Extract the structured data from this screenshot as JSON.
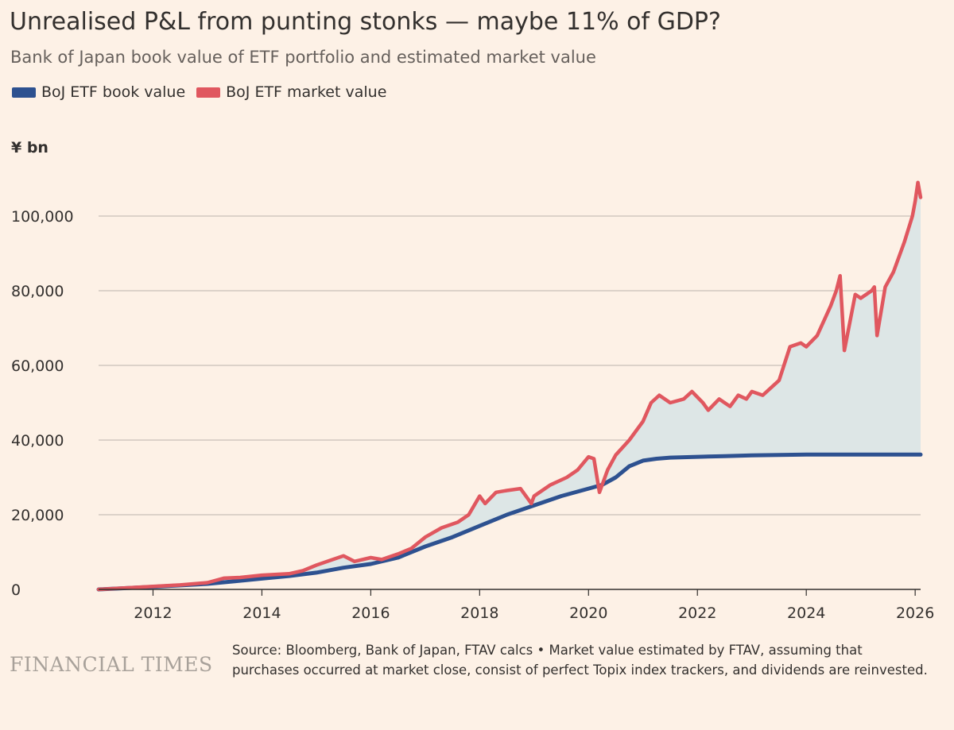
{
  "title": "Unrealised P&L from punting stonks — maybe 11% of GDP?",
  "subtitle": "Bank of Japan book value of ETF portfolio and estimated market value",
  "source": {
    "line": "Source: Bloomberg, Bank of Japan, FTAV calcs • Market value estimated by FTAV, assuming that purchases occurred at market close, consist of perfect Topix index trackers, and dividends are reinvested."
  },
  "brand": "FINANCIAL TIMES",
  "colors": {
    "background": "#fdf1e6",
    "book": "#2d5190",
    "market": "#e0575f",
    "fill": "#dde6e6",
    "grid": "#c9c0b8",
    "axis": "#33302e"
  },
  "chart_data": {
    "type": "line",
    "title": "Unrealised P&L from punting stonks — maybe 11% of GDP?",
    "ylabel": "¥ bn",
    "xlabel": "",
    "xlim": [
      2011.0,
      2026.1
    ],
    "ylim": [
      0,
      110000
    ],
    "xticks": [
      2012,
      2014,
      2016,
      2018,
      2020,
      2022,
      2024,
      2026
    ],
    "yticks": [
      0,
      20000,
      40000,
      60000,
      80000,
      100000
    ],
    "ytick_labels": [
      "0",
      "20,000",
      "40,000",
      "60,000",
      "80,000",
      "100,000"
    ],
    "shaded_area": "between market value and book value",
    "series": [
      {
        "name": "BoJ ETF book value",
        "color": "#2d5190",
        "x": [
          2011.0,
          2012.0,
          2013.0,
          2013.5,
          2014.0,
          2014.5,
          2015.0,
          2015.5,
          2016.0,
          2016.5,
          2017.0,
          2017.5,
          2018.0,
          2018.5,
          2019.0,
          2019.5,
          2020.0,
          2020.25,
          2020.5,
          2020.75,
          2021.0,
          2021.25,
          2021.5,
          2022.0,
          2022.5,
          2023.0,
          2024.0,
          2025.0,
          2026.1
        ],
        "y": [
          0,
          700,
          1500,
          2200,
          2900,
          3600,
          4500,
          5800,
          6800,
          8500,
          11500,
          14000,
          17000,
          20000,
          22500,
          25000,
          27000,
          28000,
          30000,
          33000,
          34500,
          35000,
          35300,
          35500,
          35700,
          35900,
          36100,
          36100,
          36100
        ]
      },
      {
        "name": "BoJ ETF market value",
        "color": "#e0575f",
        "x": [
          2011.0,
          2012.0,
          2012.5,
          2013.0,
          2013.3,
          2013.6,
          2014.0,
          2014.5,
          2014.75,
          2015.0,
          2015.3,
          2015.5,
          2015.7,
          2016.0,
          2016.2,
          2016.5,
          2016.75,
          2017.0,
          2017.3,
          2017.6,
          2017.8,
          2018.0,
          2018.1,
          2018.3,
          2018.5,
          2018.75,
          2018.95,
          2019.0,
          2019.3,
          2019.6,
          2019.8,
          2020.0,
          2020.1,
          2020.2,
          2020.35,
          2020.5,
          2020.75,
          2021.0,
          2021.15,
          2021.3,
          2021.5,
          2021.75,
          2021.9,
          2022.1,
          2022.2,
          2022.4,
          2022.6,
          2022.75,
          2022.9,
          2023.0,
          2023.2,
          2023.5,
          2023.7,
          2023.9,
          2024.0,
          2024.2,
          2024.45,
          2024.55,
          2024.62,
          2024.7,
          2024.9,
          2025.0,
          2025.2,
          2025.25,
          2025.3,
          2025.45,
          2025.6,
          2025.8,
          2025.95,
          2026.0,
          2026.05,
          2026.1
        ],
        "y": [
          0,
          800,
          1200,
          1800,
          3000,
          3200,
          3800,
          4200,
          5000,
          6500,
          8000,
          9000,
          7500,
          8500,
          8000,
          9500,
          11000,
          14000,
          16500,
          18000,
          20000,
          25000,
          23000,
          26000,
          26500,
          27000,
          23000,
          25000,
          28000,
          30000,
          32000,
          35500,
          35000,
          26000,
          32000,
          36000,
          40000,
          45000,
          50000,
          52000,
          50000,
          51000,
          53000,
          50000,
          48000,
          51000,
          49000,
          52000,
          51000,
          53000,
          52000,
          56000,
          65000,
          66000,
          65000,
          68000,
          76000,
          80000,
          84000,
          64000,
          79000,
          78000,
          80000,
          81000,
          68000,
          81000,
          85000,
          93000,
          100000,
          104000,
          109000,
          105000
        ]
      }
    ]
  }
}
